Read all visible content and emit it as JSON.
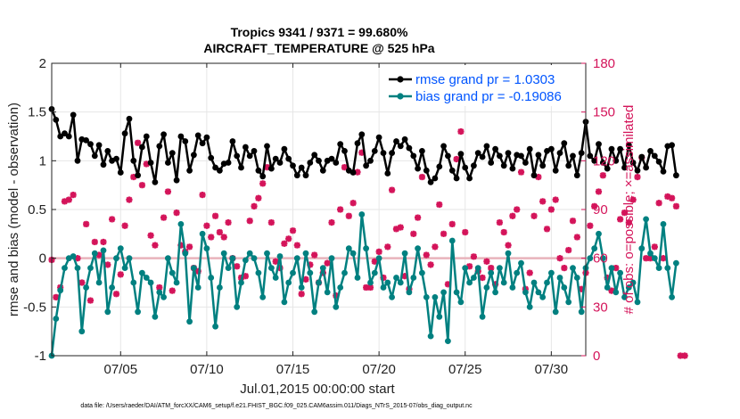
{
  "chart_data": {
    "type": "line",
    "title_line1": "Tropics 9341 / 9371 = 99.680%",
    "title_line2": "AIRCRAFT_TEMPERATURE @ 525 hPa",
    "xlabel": "Jul.01,2015 00:00:00 start",
    "ylabel_left": "rmse and bias (model - observation)",
    "ylabel_right": "# of obs: o=possible; ×=assimilated",
    "xlim_days": [
      1,
      32
    ],
    "ylim_left": [
      -1,
      2
    ],
    "ylim_right": [
      0,
      180
    ],
    "x_ticks": [
      {
        "day": 5,
        "label": "07/05"
      },
      {
        "day": 10,
        "label": "07/10"
      },
      {
        "day": 15,
        "label": "07/15"
      },
      {
        "day": 20,
        "label": "07/20"
      },
      {
        "day": 25,
        "label": "07/25"
      },
      {
        "day": 30,
        "label": "07/30"
      }
    ],
    "y_ticks_left": [
      {
        "value": -1,
        "label": "-1"
      },
      {
        "value": -0.5,
        "label": "-0.5"
      },
      {
        "value": 0,
        "label": "0"
      },
      {
        "value": 0.5,
        "label": "0.5"
      },
      {
        "value": 1,
        "label": "1"
      },
      {
        "value": 1.5,
        "label": "1.5"
      },
      {
        "value": 2,
        "label": "2"
      }
    ],
    "y_ticks_right": [
      {
        "value": 0,
        "label": "0"
      },
      {
        "value": 30,
        "label": "30"
      },
      {
        "value": 60,
        "label": "60"
      },
      {
        "value": 90,
        "label": "90"
      },
      {
        "value": 120,
        "label": "120"
      },
      {
        "value": 150,
        "label": "150"
      },
      {
        "value": 180,
        "label": "180"
      }
    ],
    "x_start_day": 1,
    "x_step_days": 0.25,
    "series": [
      {
        "name": "rmse grand pr = 1.0303",
        "color": "#000000",
        "axis": "left",
        "values": [
          1.53,
          1.42,
          1.25,
          1.28,
          1.25,
          1.47,
          1.0,
          1.22,
          1.21,
          1.17,
          1.05,
          1.16,
          0.96,
          1.1,
          1.0,
          1.02,
          0.88,
          1.28,
          1.43,
          1.0,
          0.85,
          1.14,
          1.25,
          0.98,
          0.78,
          1.15,
          1.27,
          0.98,
          1.08,
          0.8,
          1.25,
          1.2,
          0.9,
          1.06,
          1.26,
          1.18,
          1.24,
          1.03,
          0.93,
          0.9,
          0.97,
          0.98,
          1.2,
          1.05,
          0.93,
          1.14,
          1.05,
          1.1,
          0.9,
          0.84,
          1.15,
          0.92,
          1.02,
          0.98,
          1.12,
          1.02,
          0.95,
          0.85,
          0.93,
          0.85,
          0.98,
          1.06,
          1.0,
          0.9,
          1.0,
          1.02,
          0.98,
          1.17,
          1.1,
          0.9,
          0.88,
          1.18,
          1.27,
          0.95,
          1.0,
          1.1,
          1.24,
          1.08,
          0.87,
          1.08,
          1.2,
          1.15,
          1.22,
          1.13,
          1.05,
          0.92,
          1.1,
          0.9,
          0.78,
          0.82,
          0.94,
          1.15,
          1.05,
          0.9,
          0.82,
          1.07,
          0.93,
          0.82,
          0.95,
          1.08,
          1.04,
          1.15,
          0.98,
          1.12,
          1.05,
          0.95,
          1.08,
          0.92,
          1.06,
          1.05,
          0.98,
          1.12,
          0.85,
          1.06,
          0.95,
          1.1,
          1.12,
          0.9,
          1.08,
          1.18,
          0.95,
          1.05,
          0.85,
          1.08,
          1.4,
          1.05,
          1.0,
          1.17,
          0.98,
          0.92,
          1.12,
          1.0,
          1.12,
          0.93,
          1.16,
          0.98,
          0.9,
          1.04,
          0.93,
          1.1,
          1.05,
          0.99,
          0.89,
          1.15,
          1.16,
          0.85
        ],
        "legend_label": "rmse grand pr = 1.0303"
      },
      {
        "name": "bias grand pr = -0.19086",
        "color": "#008080",
        "axis": "left",
        "values": [
          -1.0,
          -0.62,
          -0.33,
          -0.1,
          0.0,
          0.02,
          -0.1,
          -0.75,
          -0.3,
          -0.1,
          0.05,
          -0.25,
          0.08,
          -0.55,
          -0.3,
          0.0,
          0.1,
          -0.1,
          0.0,
          -0.25,
          -0.55,
          -0.15,
          -0.2,
          -0.25,
          -0.6,
          -0.35,
          -0.4,
          0.0,
          -0.15,
          -0.25,
          0.35,
          0.05,
          -0.65,
          -0.1,
          -0.3,
          0.25,
          0.1,
          -0.2,
          -0.7,
          -0.3,
          0.05,
          -0.1,
          0.0,
          -0.5,
          -0.25,
          -0.02,
          0.05,
          0.0,
          -0.15,
          -0.4,
          0.05,
          -0.1,
          -0.2,
          0.02,
          -0.45,
          -0.25,
          -0.15,
          0.0,
          -0.3,
          0.05,
          -0.15,
          -0.55,
          -0.25,
          -0.1,
          -0.35,
          0.0,
          -0.5,
          -0.3,
          -0.15,
          0.1,
          0.05,
          -0.2,
          0.45,
          0.1,
          -0.25,
          -0.15,
          0.0,
          -0.3,
          -0.25,
          -0.4,
          -0.2,
          -0.25,
          0.05,
          -0.35,
          -0.2,
          0.1,
          -0.15,
          -0.4,
          -0.8,
          -0.4,
          -0.6,
          -0.35,
          -0.85,
          0.18,
          -0.35,
          -0.45,
          -0.1,
          -0.25,
          -0.2,
          -0.1,
          -0.6,
          -0.3,
          -0.15,
          -0.35,
          -0.1,
          -0.25,
          0.05,
          -0.3,
          -0.15,
          -0.05,
          -0.35,
          -0.5,
          -0.25,
          -0.35,
          -0.4,
          -0.25,
          -0.15,
          -0.55,
          -0.2,
          -0.3,
          -0.45,
          -0.1,
          -0.2,
          -0.55,
          -0.1,
          0.0,
          0.1,
          0.25,
          0.0,
          -0.3,
          -0.1,
          -0.35,
          -0.15,
          -0.4,
          -0.3,
          -0.25,
          -0.45,
          0.1,
          0.4,
          0.05,
          0.0,
          -0.1,
          0.35,
          -0.1,
          -0.4,
          -0.05
        ],
        "legend_label": "bias grand pr = -0.19086"
      }
    ],
    "obs_series": {
      "name": "assimilated",
      "color": "#d4145a",
      "axis": "right",
      "values": [
        59,
        36,
        42,
        95,
        96,
        99,
        60,
        45,
        81,
        34,
        70,
        62,
        70,
        56,
        84,
        38,
        50,
        80,
        96,
        110,
        131,
        105,
        118,
        74,
        68,
        42,
        85,
        101,
        40,
        88,
        68,
        64,
        67,
        54,
        52,
        99,
        80,
        73,
        86,
        76,
        73,
        82,
        60,
        55,
        48,
        49,
        83,
        92,
        97,
        106,
        116,
        82,
        58,
        54,
        69,
        72,
        77,
        68,
        38,
        47,
        56,
        62,
        45,
        51,
        57,
        82,
        37,
        90,
        116,
        86,
        94,
        113,
        125,
        42,
        42,
        58,
        64,
        48,
        67,
        102,
        78,
        79,
        49,
        41,
        75,
        85,
        110,
        62,
        56,
        67,
        93,
        75,
        44,
        81,
        121,
        138,
        76,
        55,
        61,
        52,
        48,
        58,
        54,
        44,
        82,
        76,
        68,
        86,
        90,
        113,
        41,
        51,
        86,
        110,
        95,
        78,
        90,
        96,
        60,
        54,
        65,
        83,
        73,
        41,
        51,
        80,
        92,
        101,
        111,
        48,
        40,
        54,
        84,
        88,
        82,
        96,
        110,
        122,
        60,
        60,
        67,
        94,
        60,
        98,
        97,
        92,
        0,
        0
      ]
    },
    "footer": "data file: /Users/raeder/DAI/ATM_forcXX/CAM6_setup/f.e21.FHIST_BGC.f09_025.CAM6assim.011/Diags_NTrS_2015-07/obs_diag_output.nc"
  }
}
